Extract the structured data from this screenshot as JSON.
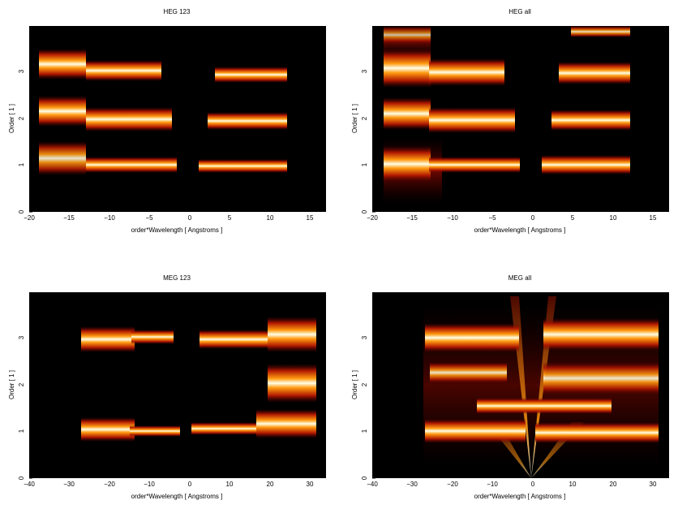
{
  "chart_data": [
    {
      "type": "heatmap",
      "title": "HEG 123",
      "xlabel": "order*Wavelength [ Angstroms ]",
      "ylabel": "Order [ 1 ]",
      "xlim": [
        -20,
        17
      ],
      "ylim": [
        0,
        4
      ],
      "xticks": [
        -20,
        -15,
        -10,
        -5,
        0,
        5,
        10,
        15
      ],
      "yticks": [
        0,
        1,
        2,
        3
      ],
      "colormap": "heat (black-red-orange-yellow-white)",
      "background": "#000000",
      "bands": [
        {
          "order": 1,
          "segments": [
            [
              -19.6,
              -12.9
            ],
            [
              -13.0,
              -1.2
            ],
            [
              1.2,
              12.2
            ]
          ]
        },
        {
          "order": 2,
          "segments": [
            [
              -19.6,
              -13.0
            ],
            [
              -13.0,
              -2.2
            ],
            [
              2.2,
              12.2
            ]
          ]
        },
        {
          "order": 3,
          "segments": [
            [
              -19.6,
              -13.0
            ],
            [
              -13.0,
              -3.2
            ],
            [
              3.2,
              12.2
            ]
          ]
        }
      ]
    },
    {
      "type": "heatmap",
      "title": "HEG all",
      "xlabel": "order*Wavelength [ Angstroms ]",
      "ylabel": "Order [ 1 ]",
      "xlim": [
        -20,
        17
      ],
      "ylim": [
        0,
        4
      ],
      "xticks": [
        -20,
        -15,
        -10,
        -5,
        0,
        5,
        10,
        15
      ],
      "yticks": [
        0,
        1,
        2,
        3
      ],
      "colormap": "heat (black-red-orange-yellow-white)",
      "background": "#000000",
      "bands": [
        {
          "order": 1,
          "segments": [
            [
              -19.6,
              -12.6
            ],
            [
              -13.0,
              -1.2
            ],
            [
              1.2,
              12.2
            ]
          ]
        },
        {
          "order": 2,
          "segments": [
            [
              -19.6,
              -13.0
            ],
            [
              -13.0,
              -2.2
            ],
            [
              2.2,
              12.2
            ]
          ]
        },
        {
          "order": 3,
          "segments": [
            [
              -19.6,
              -13.0
            ],
            [
              -13.0,
              -3.2
            ],
            [
              3.2,
              12.2
            ]
          ]
        },
        {
          "order": 4,
          "segments": [
            [
              -19.6,
              -13.0
            ],
            [
              5.0,
              12.2
            ]
          ]
        }
      ]
    },
    {
      "type": "heatmap",
      "title": "MEG 123",
      "xlabel": "order*Wavelength [ Angstroms ]",
      "ylabel": "Order [ 1 ]",
      "xlim": [
        -40,
        35
      ],
      "ylim": [
        0,
        4
      ],
      "xticks": [
        -40,
        -30,
        -20,
        -10,
        0,
        10,
        20,
        30
      ],
      "yticks": [
        0,
        1,
        2,
        3
      ],
      "colormap": "heat (black-red-orange-yellow-white)",
      "background": "#000000",
      "bands": [
        {
          "order": 1,
          "segments": [
            [
              -26.4,
              -13.0
            ],
            [
              -13.0,
              -2.2
            ],
            [
              1.2,
              33.6
            ]
          ]
        },
        {
          "order": 2,
          "segments": [
            [
              20.0,
              33.6
            ]
          ]
        },
        {
          "order": 3,
          "segments": [
            [
              -26.4,
              -13.0
            ],
            [
              -13.0,
              -3.2
            ],
            [
              2.8,
              20.0
            ],
            [
              20.0,
              33.6
            ]
          ]
        }
      ]
    },
    {
      "type": "heatmap",
      "title": "MEG all",
      "xlabel": "order*Wavelength [ Angstroms ]",
      "ylabel": "Order [ 1 ]",
      "xlim": [
        -40,
        35
      ],
      "ylim": [
        0,
        4
      ],
      "xticks": [
        -40,
        -30,
        -20,
        -10,
        0,
        10,
        20,
        30
      ],
      "yticks": [
        0,
        1,
        2,
        3
      ],
      "colormap": "heat (black-red-orange-yellow-white)",
      "background": "#000000",
      "bands": [
        {
          "order": 1,
          "segments": [
            [
              -26.4,
              -1.5
            ],
            [
              1.5,
              33.6
            ]
          ]
        },
        {
          "order": 1.5,
          "segments": [
            [
              -13.0,
              20.0
            ]
          ]
        },
        {
          "order": 2,
          "segments": [
            [
              -25.0,
              -6.0
            ],
            [
              3.0,
              33.6
            ]
          ]
        },
        {
          "order": 3,
          "segments": [
            [
              -26.4,
              -3.0
            ],
            [
              3.0,
              33.6
            ]
          ]
        }
      ]
    }
  ]
}
